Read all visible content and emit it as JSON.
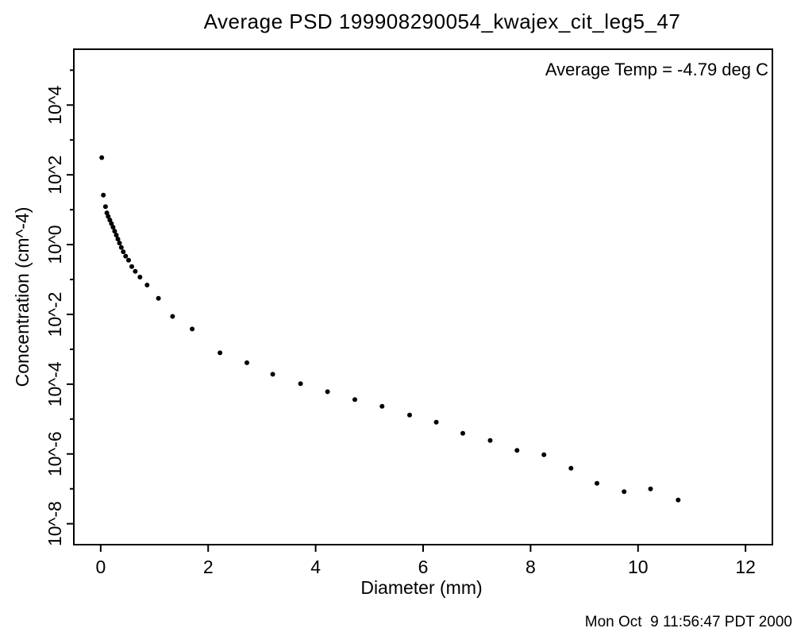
{
  "chart_data": {
    "type": "scatter",
    "title": "Average PSD 199908290054_kwajex_cit_leg5_47",
    "annotation": "Average Temp = -4.79 deg C",
    "xlabel": "Diameter (mm)",
    "ylabel": "Concentration (cm^-4)",
    "timestamp": "Mon Oct  9 11:56:47 PDT 2000",
    "grid": false,
    "legend": "none",
    "marker": "filled-circle",
    "marker_color": "#000000",
    "background_color": "#ffffff",
    "axis_color": "#000000",
    "xlim": [
      -0.5,
      12.5
    ],
    "ylim_log10": [
      -8.6,
      5.6
    ],
    "x_ticks": [
      {
        "value": 0,
        "label": "0"
      },
      {
        "value": 2,
        "label": "2"
      },
      {
        "value": 4,
        "label": "4"
      },
      {
        "value": 6,
        "label": "6"
      },
      {
        "value": 8,
        "label": "8"
      },
      {
        "value": 10,
        "label": "10"
      },
      {
        "value": 12,
        "label": "12"
      }
    ],
    "y_ticks": [
      {
        "exp": 4,
        "label": "10^4"
      },
      {
        "exp": 2,
        "label": "10^2"
      },
      {
        "exp": 0,
        "label": "10^0"
      },
      {
        "exp": -2,
        "label": "10^-2"
      },
      {
        "exp": -4,
        "label": "10^-4"
      },
      {
        "exp": -6,
        "label": "10^-6"
      },
      {
        "exp": -8,
        "label": "10^-8"
      }
    ],
    "y_minor_tick_exps": [
      5,
      3,
      1,
      -1,
      -3,
      -5,
      -7
    ],
    "points_diameter_mm_vs_concentration_cm4": [
      [
        0.02,
        312
      ],
      [
        0.05,
        26.1
      ],
      [
        0.09,
        12.3
      ],
      [
        0.115,
        8.11
      ],
      [
        0.14,
        6.41
      ],
      [
        0.17,
        5.07
      ],
      [
        0.2,
        4.0
      ],
      [
        0.23,
        3.16
      ],
      [
        0.26,
        2.43
      ],
      [
        0.29,
        1.87
      ],
      [
        0.32,
        1.44
      ],
      [
        0.35,
        1.11
      ],
      [
        0.384,
        0.832
      ],
      [
        0.421,
        0.624
      ],
      [
        0.465,
        0.468
      ],
      [
        0.52,
        0.357
      ],
      [
        0.579,
        0.234
      ],
      [
        0.643,
        0.171
      ],
      [
        0.731,
        0.117
      ],
      [
        0.864,
        0.0693
      ],
      [
        1.075,
        0.0289
      ],
      [
        1.337,
        0.00877
      ],
      [
        1.702,
        0.0038
      ],
      [
        2.219,
        0.00079
      ],
      [
        2.721,
        0.000411
      ],
      [
        3.202,
        0.000192
      ],
      [
        3.719,
        0.000103
      ],
      [
        4.221,
        6.08e-05
      ],
      [
        4.73,
        3.61e-05
      ],
      [
        5.236,
        2.31e-05
      ],
      [
        5.749,
        1.3e-05
      ],
      [
        6.245,
        8.11e-06
      ],
      [
        6.738,
        3.9e-06
      ],
      [
        7.249,
        2.43e-06
      ],
      [
        7.747,
        1.26e-06
      ],
      [
        8.249,
        9.48e-07
      ],
      [
        8.752,
        3.9e-07
      ],
      [
        9.235,
        1.44e-07
      ],
      [
        9.741,
        8.32e-08
      ],
      [
        10.233,
        1e-07
      ],
      [
        10.746,
        4.81e-08
      ]
    ]
  }
}
